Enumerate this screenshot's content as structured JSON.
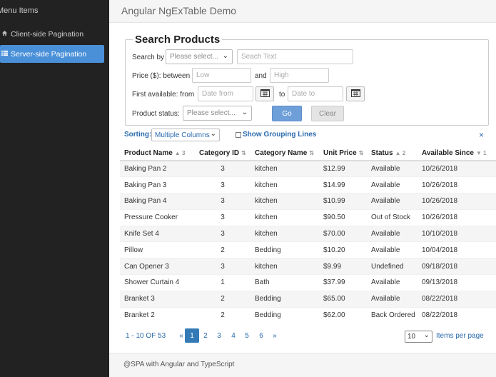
{
  "sidebar": {
    "heading": "Menu Items",
    "items": [
      {
        "label": "Client-side Pagination",
        "icon": "home-icon"
      },
      {
        "label": "Server-side Pagination",
        "icon": "list-icon"
      }
    ]
  },
  "header": {
    "title": "Angular NgExTable Demo"
  },
  "search": {
    "legend": "Search Products",
    "search_by_label": "Search by",
    "search_by_placeholder": "Please select...",
    "search_text_placeholder": "Seach Text",
    "price_label": "Price ($): between",
    "price_low_placeholder": "Low",
    "and_label": "and",
    "price_high_placeholder": "High",
    "first_available_label": "First available: from",
    "date_from_placeholder": "Date from",
    "to_label": "to",
    "date_to_placeholder": "Date to",
    "status_label": "Product status:",
    "status_placeholder": "Please select...",
    "go_label": "Go",
    "clear_label": "Clear"
  },
  "sorting": {
    "label": "Sorting:",
    "selected": "Multiple Columns",
    "grouping_label": "Show Grouping Lines",
    "close_glyph": "×"
  },
  "table": {
    "columns": [
      {
        "label": "Product Name",
        "sort": "▲",
        "order": "3"
      },
      {
        "label": "Category ID",
        "sort": "⇅",
        "order": ""
      },
      {
        "label": "Category Name",
        "sort": "⇅",
        "order": ""
      },
      {
        "label": "Unit Price",
        "sort": "⇅",
        "order": ""
      },
      {
        "label": "Status",
        "sort": "▲",
        "order": "2"
      },
      {
        "label": "Available Since",
        "sort": "▼",
        "order": "1"
      }
    ],
    "rows": [
      [
        "Baking Pan 2",
        "3",
        "kitchen",
        "$12.99",
        "Available",
        "10/26/2018"
      ],
      [
        "Baking Pan 3",
        "3",
        "kitchen",
        "$14.99",
        "Available",
        "10/26/2018"
      ],
      [
        "Baking Pan 4",
        "3",
        "kitchen",
        "$10.99",
        "Available",
        "10/26/2018"
      ],
      [
        "Pressure Cooker",
        "3",
        "kitchen",
        "$90.50",
        "Out of Stock",
        "10/26/2018"
      ],
      [
        "Knife Set 4",
        "3",
        "kitchen",
        "$70.00",
        "Available",
        "10/10/2018"
      ],
      [
        "Pillow",
        "2",
        "Bedding",
        "$10.20",
        "Available",
        "10/04/2018"
      ],
      [
        "Can Opener 3",
        "3",
        "kitchen",
        "$9.99",
        "Undefined",
        "09/18/2018"
      ],
      [
        "Shower Curtain 4",
        "1",
        "Bath",
        "$37.99",
        "Available",
        "09/13/2018"
      ],
      [
        "Branket 3",
        "2",
        "Bedding",
        "$65.00",
        "Available",
        "08/22/2018"
      ],
      [
        "Branket 2",
        "2",
        "Bedding",
        "$62.00",
        "Back Ordered",
        "08/22/2018"
      ]
    ]
  },
  "pager": {
    "count": "1 - 10 OF 53",
    "prev": "«",
    "pages": [
      "1",
      "2",
      "3",
      "4",
      "5",
      "6"
    ],
    "active_page": "1",
    "next": "»",
    "page_size": "10",
    "items_per_page": "Items per page"
  },
  "footer": {
    "text": "@SPA with Angular and TypeScript"
  },
  "colors": {
    "sidebar_bg": "#222222",
    "accent": "#4a90d9",
    "link": "#2a6aad"
  }
}
